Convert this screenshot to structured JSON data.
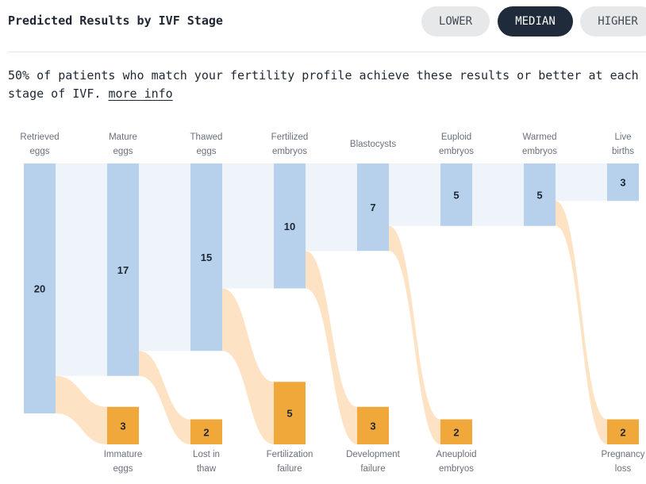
{
  "header": {
    "title": "Predicted Results by IVF Stage",
    "toggles": {
      "lower": "LOWER",
      "median": "MEDIAN",
      "higher": "HIGHER",
      "selected": "MEDIAN"
    }
  },
  "description": {
    "line1": "50% of patients who match your fertility profile achieve these results or better at each",
    "line2_prefix": "stage of IVF. ",
    "link": "more info"
  },
  "colors": {
    "stage_bar": "#b7d0ec",
    "flow": "#eef4fa",
    "loss_bar": "#f1a83b",
    "loss_flow": "#fde3c4"
  },
  "chart_data": {
    "type": "sankey",
    "stages": [
      {
        "label": [
          "Retrieved",
          "eggs"
        ],
        "value": 20
      },
      {
        "label": [
          "Mature",
          "eggs"
        ],
        "value": 17
      },
      {
        "label": [
          "Thawed",
          "eggs"
        ],
        "value": 15
      },
      {
        "label": [
          "Fertilized",
          "embryos"
        ],
        "value": 10
      },
      {
        "label": [
          "Blastocysts"
        ],
        "value": 7
      },
      {
        "label": [
          "Euploid",
          "embryos"
        ],
        "value": 5
      },
      {
        "label": [
          "Warmed",
          "embryos"
        ],
        "value": 5
      },
      {
        "label": [
          "Live",
          "births"
        ],
        "value": 3
      }
    ],
    "losses": [
      {
        "from_stage": 0,
        "label": [
          "Immature",
          "eggs"
        ],
        "value": 3
      },
      {
        "from_stage": 1,
        "label": [
          "Lost in",
          "thaw"
        ],
        "value": 2
      },
      {
        "from_stage": 2,
        "label": [
          "Fertilization",
          "failure"
        ],
        "value": 5
      },
      {
        "from_stage": 3,
        "label": [
          "Development",
          "failure"
        ],
        "value": 3
      },
      {
        "from_stage": 4,
        "label": [
          "Aneuploid",
          "embryos"
        ],
        "value": 2
      },
      {
        "from_stage": 6,
        "label": [
          "Pregnancy",
          "loss"
        ],
        "value": 2
      }
    ]
  }
}
